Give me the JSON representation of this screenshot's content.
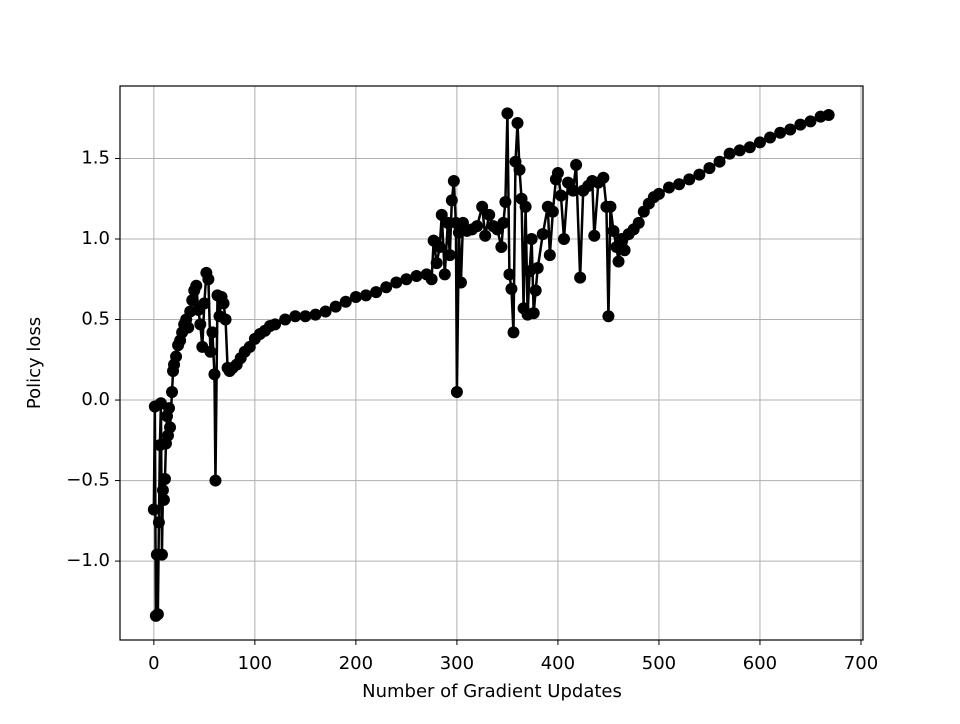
{
  "chart_data": {
    "type": "line",
    "x_label": "Number of Gradient Updates",
    "y_label": "Policy loss",
    "x": [
      0,
      1,
      2,
      3,
      4,
      5,
      6,
      7,
      8,
      9,
      10,
      11,
      12,
      13,
      14,
      15,
      16,
      18,
      19,
      20,
      22,
      24,
      26,
      28,
      30,
      32,
      34,
      36,
      38,
      40,
      42,
      44,
      46,
      48,
      50,
      52,
      54,
      56,
      58,
      60,
      61,
      63,
      65,
      67,
      69,
      71,
      73,
      75,
      78,
      82,
      86,
      90,
      95,
      100,
      105,
      110,
      115,
      120,
      130,
      140,
      150,
      160,
      170,
      180,
      190,
      200,
      210,
      220,
      230,
      240,
      250,
      260,
      270,
      275,
      277,
      280,
      283,
      285,
      288,
      291,
      293,
      295,
      297,
      299,
      300,
      302,
      304,
      306,
      310,
      315,
      320,
      325,
      328,
      332,
      336,
      340,
      344,
      346,
      348,
      350,
      352,
      354,
      356,
      358,
      360,
      362,
      364,
      366,
      368,
      370,
      372,
      374,
      376,
      378,
      380,
      385,
      390,
      392,
      395,
      398,
      400,
      403,
      406,
      410,
      415,
      418,
      422,
      425,
      430,
      434,
      436,
      440,
      445,
      448,
      450,
      452,
      455,
      458,
      460,
      463,
      466,
      470,
      475,
      480,
      485,
      490,
      495,
      500,
      510,
      520,
      530,
      540,
      550,
      560,
      570,
      580,
      590,
      600,
      610,
      620,
      630,
      640,
      650,
      660,
      668
    ],
    "series": [
      {
        "name": "Policy loss",
        "color": "#000000",
        "values": [
          -0.68,
          -0.04,
          -1.34,
          -0.96,
          -1.33,
          -0.76,
          -0.28,
          -0.02,
          -0.96,
          -0.56,
          -0.62,
          -0.49,
          -0.27,
          -0.1,
          -0.22,
          -0.05,
          -0.17,
          0.05,
          0.18,
          0.22,
          0.27,
          0.34,
          0.37,
          0.42,
          0.47,
          0.5,
          0.45,
          0.55,
          0.62,
          0.68,
          0.71,
          0.56,
          0.47,
          0.33,
          0.6,
          0.79,
          0.75,
          0.3,
          0.42,
          0.16,
          -0.5,
          0.65,
          0.52,
          0.64,
          0.6,
          0.5,
          0.2,
          0.18,
          0.2,
          0.22,
          0.26,
          0.3,
          0.33,
          0.38,
          0.41,
          0.43,
          0.46,
          0.47,
          0.5,
          0.52,
          0.52,
          0.53,
          0.55,
          0.58,
          0.61,
          0.64,
          0.65,
          0.67,
          0.7,
          0.73,
          0.75,
          0.77,
          0.78,
          0.75,
          0.99,
          0.85,
          0.95,
          1.15,
          0.78,
          1.1,
          0.9,
          1.24,
          1.36,
          1.1,
          0.05,
          1.04,
          0.73,
          1.1,
          1.05,
          1.06,
          1.08,
          1.2,
          1.02,
          1.15,
          1.08,
          1.06,
          0.95,
          1.1,
          1.23,
          1.78,
          0.78,
          0.69,
          0.42,
          1.48,
          1.72,
          1.43,
          1.25,
          0.57,
          1.2,
          0.53,
          0.8,
          1.0,
          0.54,
          0.68,
          0.82,
          1.03,
          1.2,
          0.9,
          1.17,
          1.37,
          1.41,
          1.27,
          1.0,
          1.35,
          1.3,
          1.46,
          0.76,
          1.3,
          1.33,
          1.36,
          1.02,
          1.35,
          1.38,
          1.2,
          0.52,
          1.2,
          1.05,
          0.95,
          0.86,
          1.0,
          0.93,
          1.03,
          1.06,
          1.1,
          1.17,
          1.22,
          1.26,
          1.28,
          1.32,
          1.34,
          1.37,
          1.4,
          1.44,
          1.48,
          1.53,
          1.55,
          1.57,
          1.6,
          1.63,
          1.66,
          1.68,
          1.71,
          1.73,
          1.76,
          1.77
        ]
      }
    ],
    "xlim": [
      -33.5,
      702
    ],
    "ylim": [
      -1.49,
      1.95
    ],
    "xticks": [
      0,
      100,
      200,
      300,
      400,
      500,
      600,
      700
    ],
    "yticks": [
      {
        "value": -1.0,
        "label": "−1.0"
      },
      {
        "value": -0.5,
        "label": "−0.5"
      },
      {
        "value": 0,
        "label": "0.0"
      },
      0.5,
      {
        "value": 1.0,
        "label": "1.0"
      },
      1.5
    ],
    "grid": true
  }
}
